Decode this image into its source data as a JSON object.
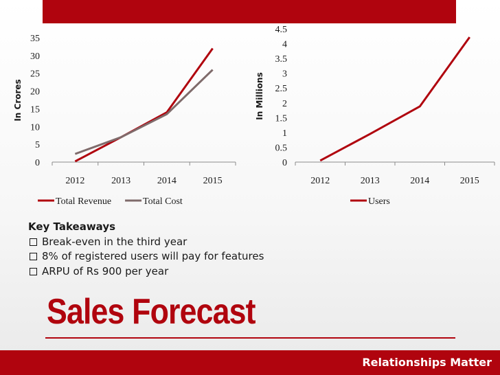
{
  "slide": {
    "title": "Sales Forecast",
    "footer": "Relationships Matter",
    "accent_color": "#b0040e"
  },
  "takeaways": {
    "heading": "Key Takeaways",
    "items": [
      "Break-even in the third year",
      "8% of registered users will pay for features",
      "ARPU of Rs 900 per year"
    ]
  },
  "chart_data": [
    {
      "type": "line",
      "categories": [
        "2012",
        "2013",
        "2014",
        "2015"
      ],
      "series": [
        {
          "name": "Total Revenue",
          "values": [
            0.2,
            7,
            14,
            32
          ],
          "color": "#b0040e"
        },
        {
          "name": "Total Cost",
          "values": [
            2.3,
            7,
            13.5,
            26
          ],
          "color": "#7f6b6b"
        }
      ],
      "title": "",
      "xlabel": "",
      "ylabel": "In Crores",
      "ylim": [
        0,
        35
      ],
      "yticks": [
        "0",
        "5",
        "10",
        "15",
        "20",
        "25",
        "30",
        "35"
      ],
      "grid": false,
      "legend": "bottom"
    },
    {
      "type": "line",
      "categories": [
        "2012",
        "2013",
        "2014",
        "2015"
      ],
      "series": [
        {
          "name": "Users",
          "values": [
            0.05,
            0.95,
            1.88,
            4.22
          ],
          "color": "#b0040e"
        }
      ],
      "title": "",
      "xlabel": "",
      "ylabel": "In Millions",
      "ylim": [
        0,
        4.5
      ],
      "yticks": [
        "0",
        "0.5",
        "1",
        "1.5",
        "2",
        "2.5",
        "3",
        "3.5",
        "4",
        "4.5"
      ],
      "grid": false,
      "legend": "bottom"
    }
  ]
}
